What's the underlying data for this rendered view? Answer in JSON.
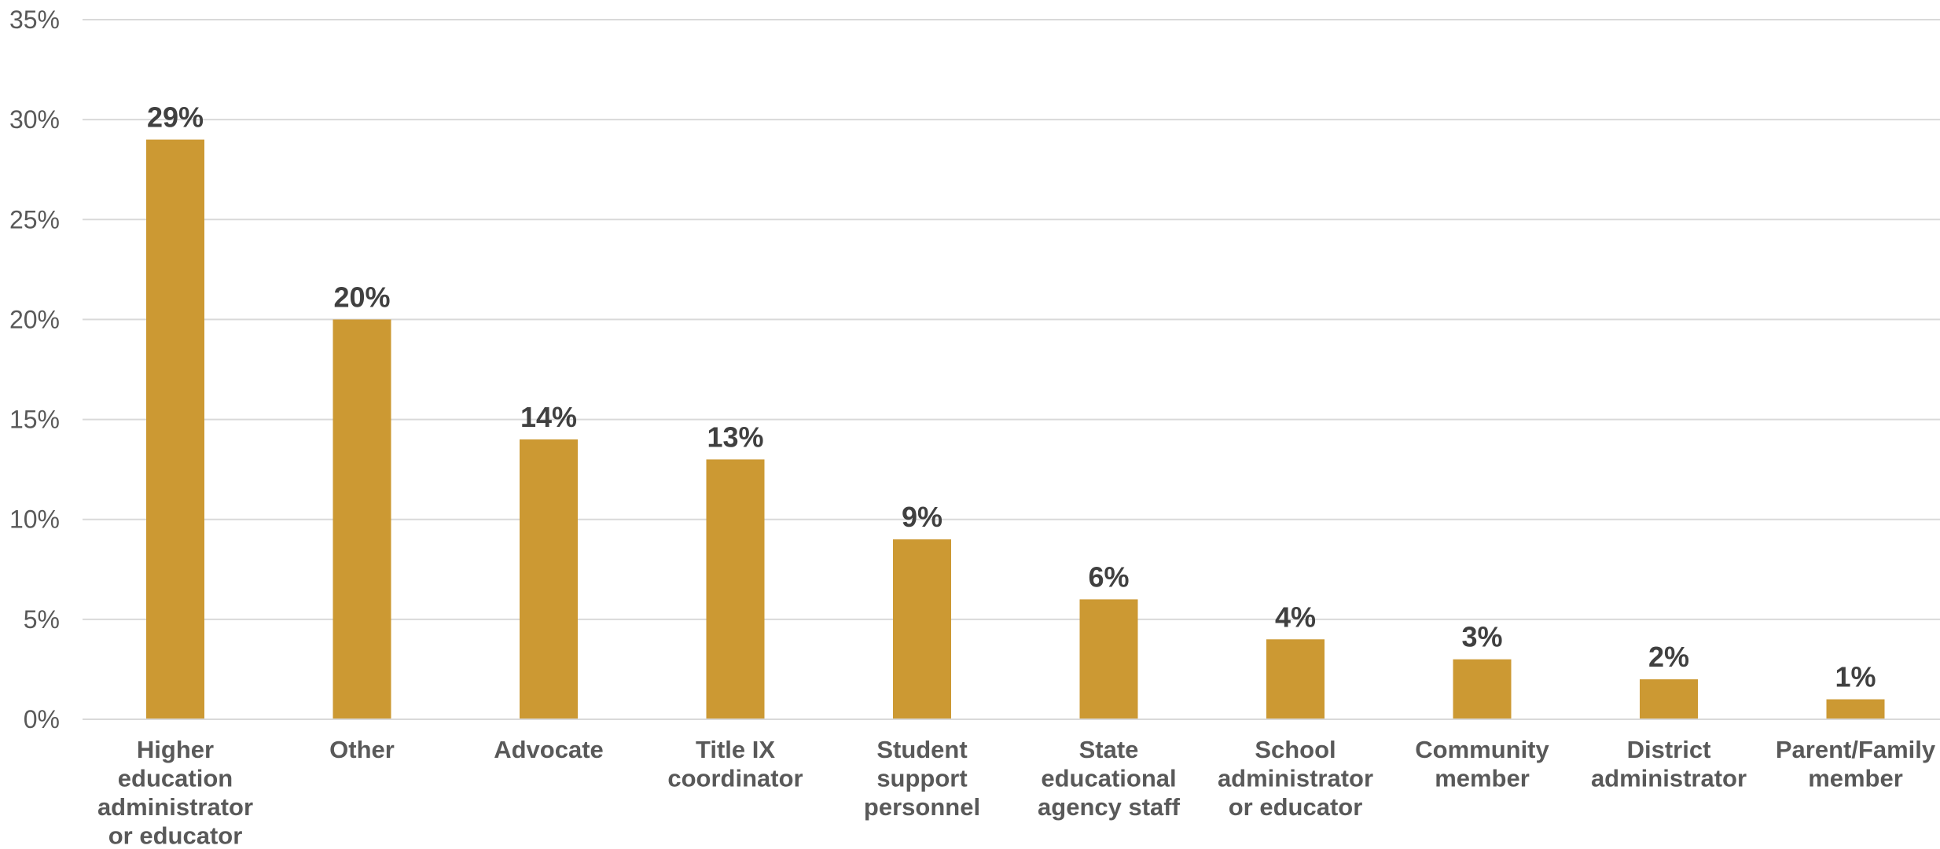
{
  "chart_data": {
    "type": "bar",
    "title": "",
    "xlabel": "",
    "ylabel": "",
    "ylim": [
      0,
      35
    ],
    "y_tick_step": 5,
    "y_tick_format": "percent",
    "grid": true,
    "legend": "none",
    "bar_color": "#CC9933",
    "data_labels": true,
    "categories": [
      "Higher education administrator or educator",
      "Other",
      "Advocate",
      "Title IX coordinator",
      "Student support personnel",
      "State educational agency staff",
      "School administrator or educator",
      "Community member",
      "District administrator",
      "Parent/Family member"
    ],
    "category_label_lines": [
      [
        "Higher",
        "education",
        "administrator",
        "or educator"
      ],
      [
        "Other"
      ],
      [
        "Advocate"
      ],
      [
        "Title IX",
        "coordinator"
      ],
      [
        "Student",
        "support",
        "personnel"
      ],
      [
        "State",
        "educational",
        "agency staff"
      ],
      [
        "School",
        "administrator",
        "or educator"
      ],
      [
        "Community",
        "member"
      ],
      [
        "District",
        "administrator"
      ],
      [
        "Parent/Family",
        "member"
      ]
    ],
    "values": [
      29,
      20,
      14,
      13,
      9,
      6,
      4,
      3,
      2,
      1
    ],
    "value_labels": [
      "29%",
      "20%",
      "14%",
      "13%",
      "9%",
      "6%",
      "4%",
      "3%",
      "2%",
      "1%"
    ],
    "y_tick_labels": [
      "0%",
      "5%",
      "10%",
      "15%",
      "20%",
      "25%",
      "30%",
      "35%"
    ]
  }
}
